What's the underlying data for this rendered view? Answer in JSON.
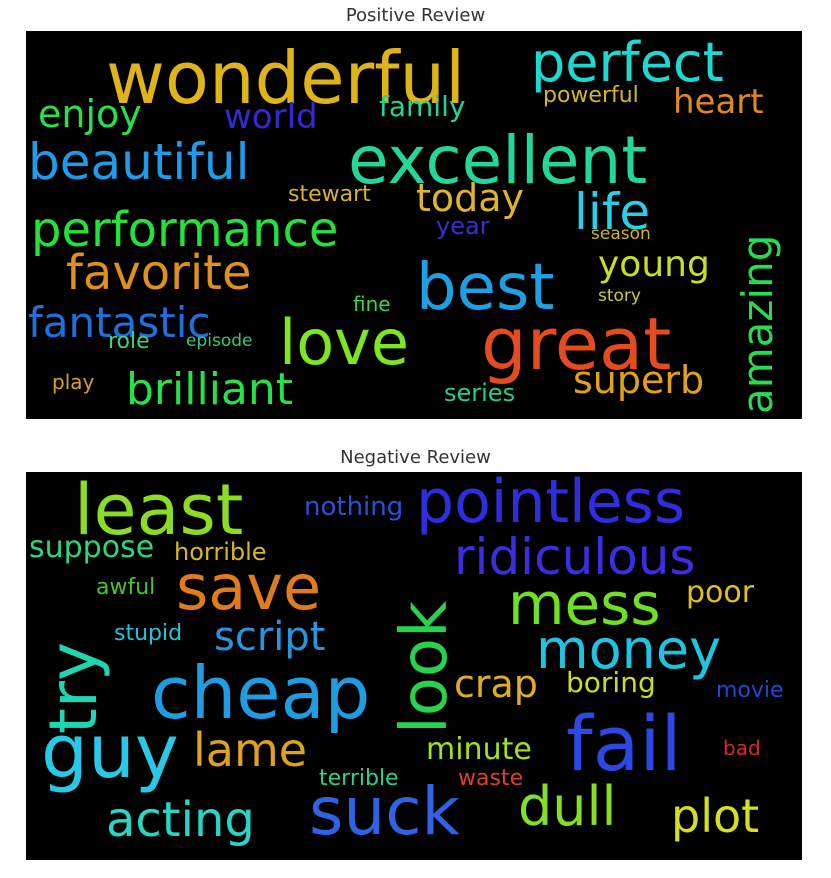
{
  "chart_data": [
    {
      "type": "wordcloud",
      "title": "Positive Review",
      "words": [
        {
          "text": "wonderful",
          "weight": 72,
          "color": "#e0b418"
        },
        {
          "text": "excellent",
          "weight": 66,
          "color": "#23d79a"
        },
        {
          "text": "perfect",
          "weight": 54,
          "color": "#1ed8d2"
        },
        {
          "text": "best",
          "weight": 64,
          "color": "#1f9fe3"
        },
        {
          "text": "great",
          "weight": 72,
          "color": "#e44b1f"
        },
        {
          "text": "love",
          "weight": 62,
          "color": "#7ee521"
        },
        {
          "text": "beautiful",
          "weight": 50,
          "color": "#1f9bea"
        },
        {
          "text": "performance",
          "weight": 48,
          "color": "#23e23a"
        },
        {
          "text": "favorite",
          "weight": 48,
          "color": "#e0901b"
        },
        {
          "text": "life",
          "weight": 50,
          "color": "#29cfe6"
        },
        {
          "text": "amazing",
          "weight": 42,
          "color": "#27dd4f"
        },
        {
          "text": "fantastic",
          "weight": 42,
          "color": "#1f70df"
        },
        {
          "text": "brilliant",
          "weight": 44,
          "color": "#27e04a"
        },
        {
          "text": "superb",
          "weight": 38,
          "color": "#e0a318"
        },
        {
          "text": "today",
          "weight": 38,
          "color": "#e0b42a"
        },
        {
          "text": "young",
          "weight": 36,
          "color": "#c9df22"
        },
        {
          "text": "enjoy",
          "weight": 38,
          "color": "#27e04c"
        },
        {
          "text": "world",
          "weight": 34,
          "color": "#3428d8"
        },
        {
          "text": "heart",
          "weight": 34,
          "color": "#e08a1e"
        },
        {
          "text": "family",
          "weight": 28,
          "color": "#25d394"
        },
        {
          "text": "powerful",
          "weight": 22,
          "color": "#d6b524"
        },
        {
          "text": "stewart",
          "weight": 22,
          "color": "#d8b222"
        },
        {
          "text": "year",
          "weight": 24,
          "color": "#3a2fcf"
        },
        {
          "text": "season",
          "weight": 17,
          "color": "#d1b51f"
        },
        {
          "text": "story",
          "weight": 17,
          "color": "#cfcf22"
        },
        {
          "text": "fine",
          "weight": 20,
          "color": "#31d845"
        },
        {
          "text": "role",
          "weight": 22,
          "color": "#3bd27d"
        },
        {
          "text": "episode",
          "weight": 17,
          "color": "#35c979"
        },
        {
          "text": "play",
          "weight": 20,
          "color": "#d9a122"
        },
        {
          "text": "series",
          "weight": 24,
          "color": "#20d189"
        }
      ]
    },
    {
      "type": "wordcloud",
      "title": "Negative Review",
      "words": [
        {
          "text": "least",
          "weight": 70,
          "color": "#8bdc23"
        },
        {
          "text": "pointless",
          "weight": 60,
          "color": "#2e2ee0"
        },
        {
          "text": "nothing",
          "weight": 26,
          "color": "#2b50d0"
        },
        {
          "text": "ridiculous",
          "weight": 50,
          "color": "#3b2de0"
        },
        {
          "text": "suppose",
          "weight": 30,
          "color": "#2ad67f"
        },
        {
          "text": "horrible",
          "weight": 24,
          "color": "#d7b827"
        },
        {
          "text": "save",
          "weight": 62,
          "color": "#e07c1b"
        },
        {
          "text": "look",
          "weight": 64,
          "color": "#27d34d"
        },
        {
          "text": "mess",
          "weight": 58,
          "color": "#6fe024"
        },
        {
          "text": "poor",
          "weight": 30,
          "color": "#e0c01c"
        },
        {
          "text": "awful",
          "weight": 22,
          "color": "#46c62a"
        },
        {
          "text": "try",
          "weight": 66,
          "color": "#1fd6b2"
        },
        {
          "text": "script",
          "weight": 40,
          "color": "#2895df"
        },
        {
          "text": "stupid",
          "weight": 22,
          "color": "#24c3d3"
        },
        {
          "text": "money",
          "weight": 54,
          "color": "#20c4e3"
        },
        {
          "text": "cheap",
          "weight": 72,
          "color": "#1f9de2"
        },
        {
          "text": "crap",
          "weight": 38,
          "color": "#e0b01c"
        },
        {
          "text": "boring",
          "weight": 28,
          "color": "#c8de22"
        },
        {
          "text": "movie",
          "weight": 22,
          "color": "#2248cf"
        },
        {
          "text": "guy",
          "weight": 74,
          "color": "#27c9e6"
        },
        {
          "text": "lame",
          "weight": 46,
          "color": "#e0a21b"
        },
        {
          "text": "fail",
          "weight": 76,
          "color": "#2e48e4"
        },
        {
          "text": "minute",
          "weight": 30,
          "color": "#a5df22"
        },
        {
          "text": "bad",
          "weight": 20,
          "color": "#d8282a"
        },
        {
          "text": "terrible",
          "weight": 22,
          "color": "#2cd387"
        },
        {
          "text": "waste",
          "weight": 22,
          "color": "#d94428"
        },
        {
          "text": "acting",
          "weight": 48,
          "color": "#26d6c6"
        },
        {
          "text": "suck",
          "weight": 66,
          "color": "#2f63e4"
        },
        {
          "text": "dull",
          "weight": 54,
          "color": "#85e024"
        },
        {
          "text": "plot",
          "weight": 46,
          "color": "#d5df22"
        }
      ]
    }
  ]
}
